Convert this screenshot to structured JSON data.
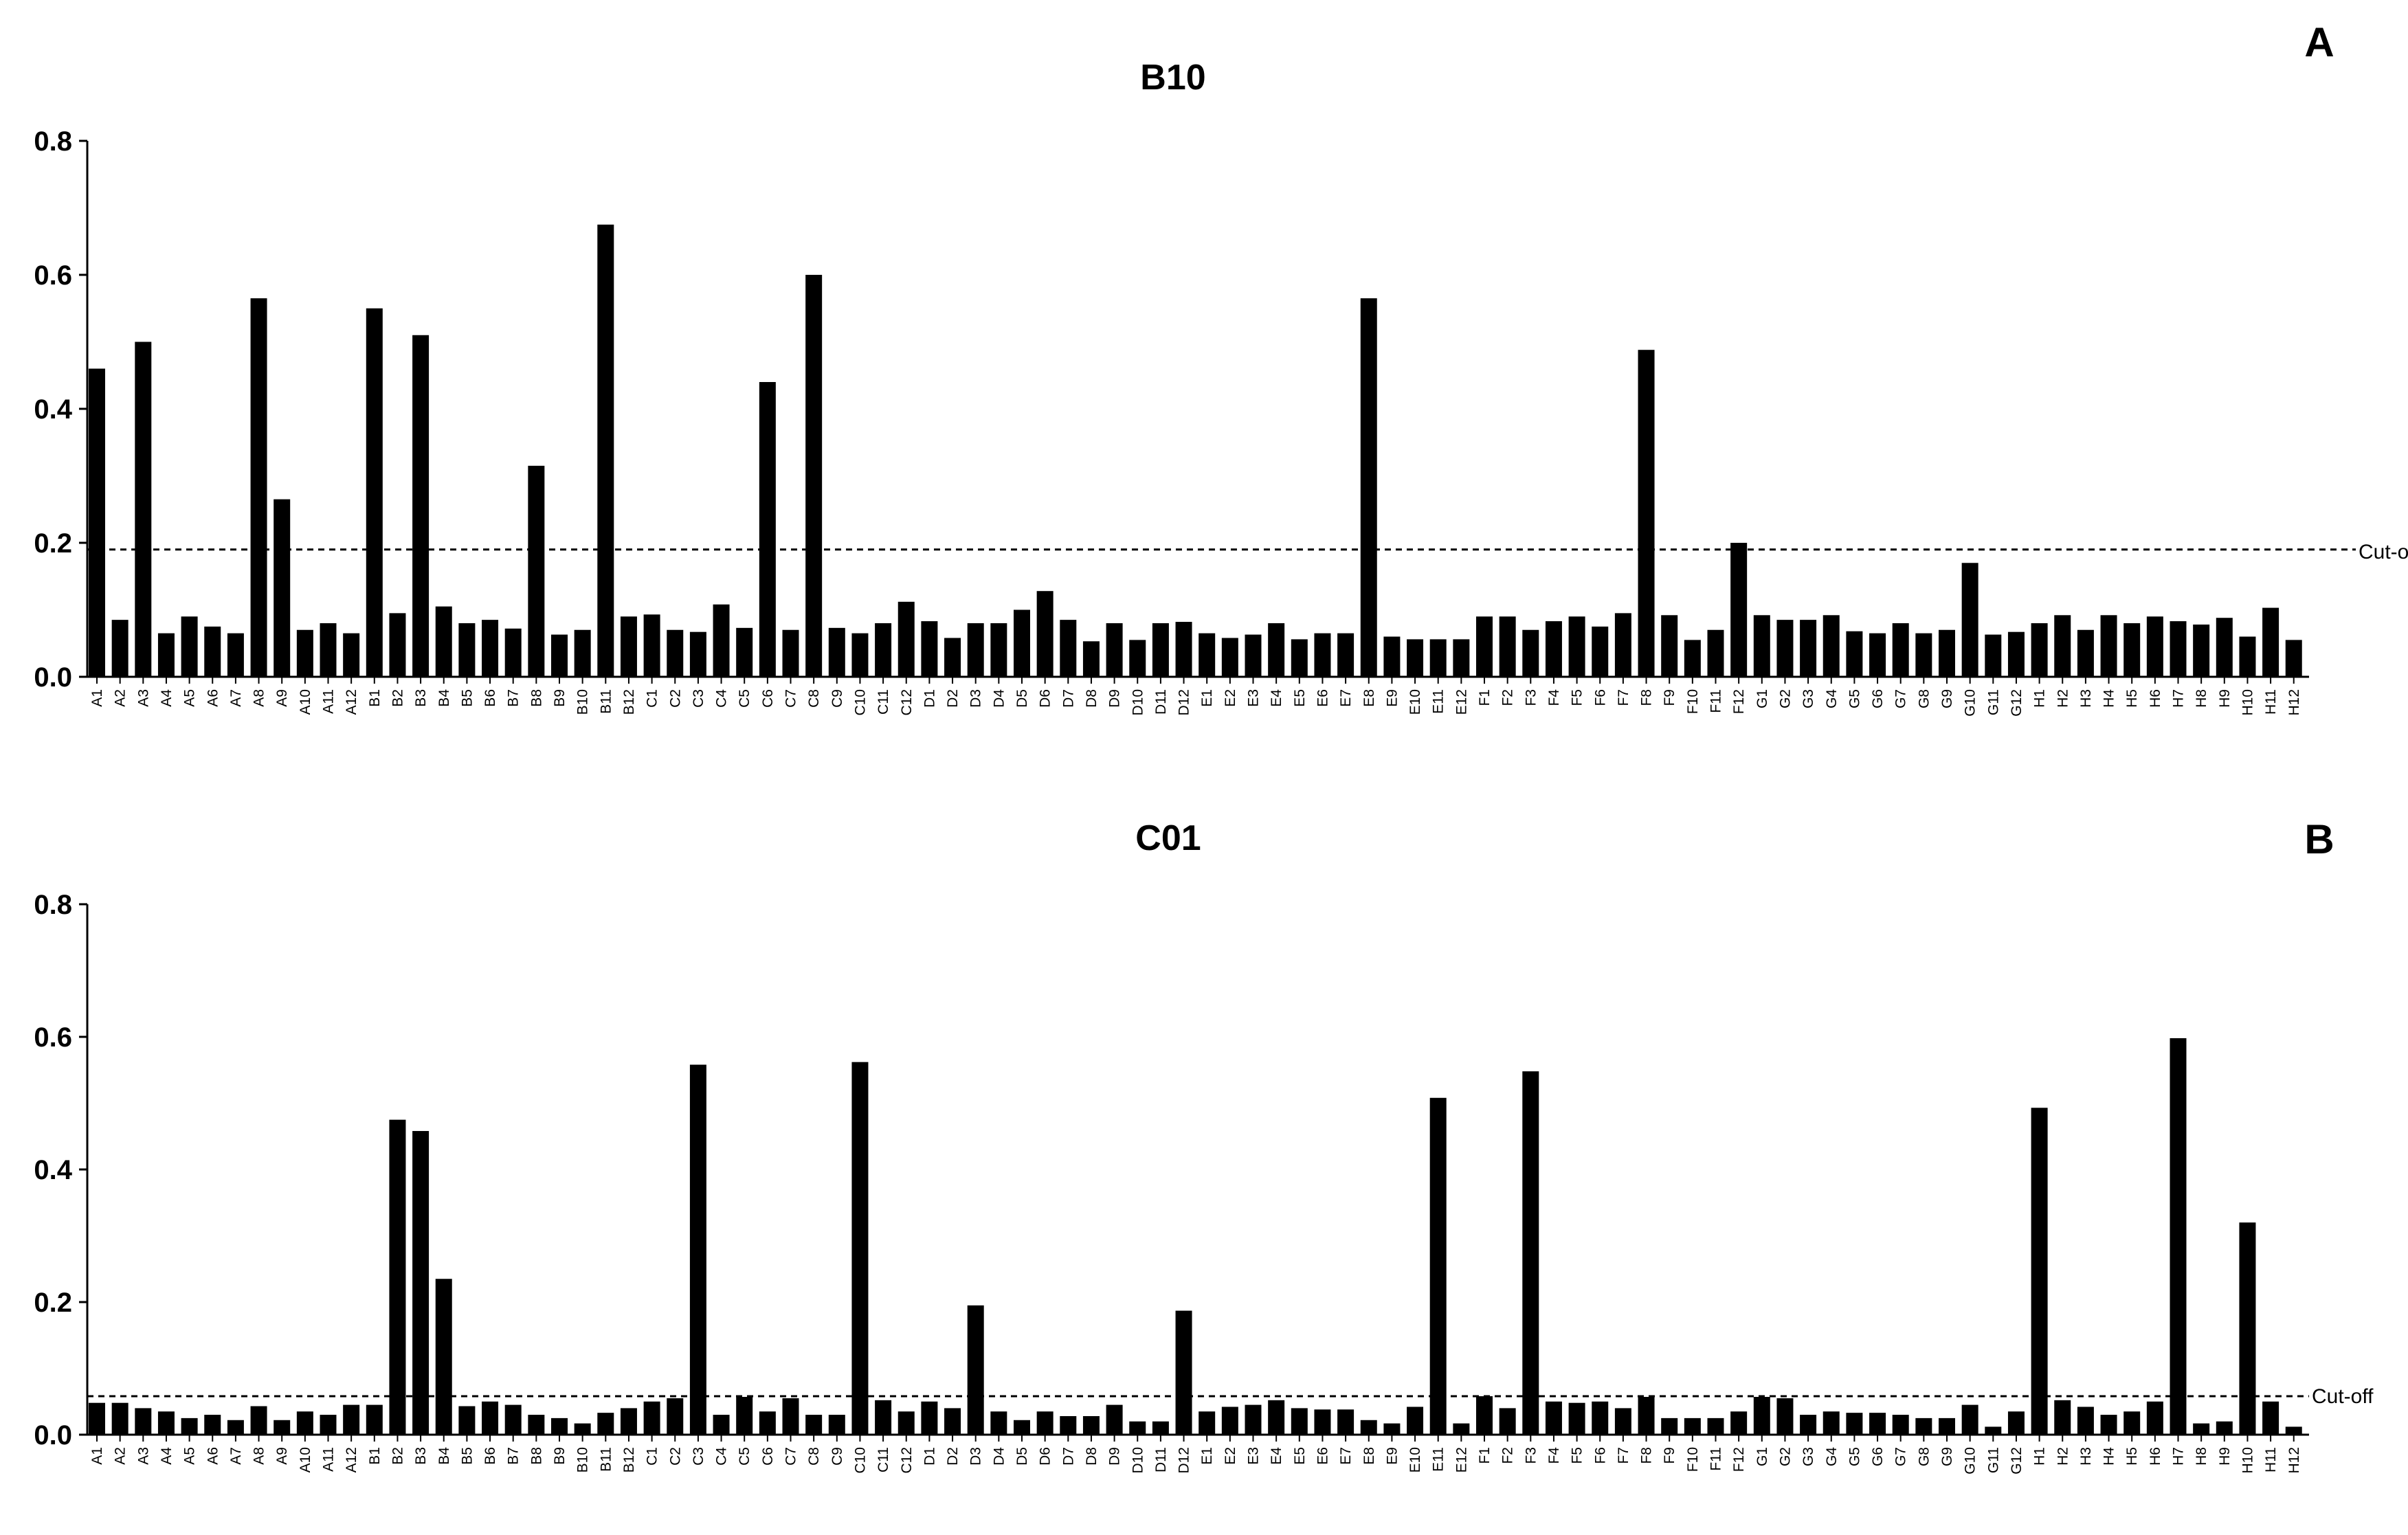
{
  "chart_data": [
    {
      "type": "bar",
      "panel_label": "A",
      "title": "B10",
      "xlabel": "",
      "ylabel": "",
      "ylim": [
        0,
        0.8
      ],
      "yticks": [
        "0.0",
        "0.2",
        "0.4",
        "0.6",
        "0.8"
      ],
      "grid": false,
      "cutoff": {
        "label": "Cut-off",
        "value": 0.19
      },
      "categories": [
        "A1",
        "A2",
        "A3",
        "A4",
        "A5",
        "A6",
        "A7",
        "A8",
        "A9",
        "A10",
        "A11",
        "A12",
        "B1",
        "B2",
        "B3",
        "B4",
        "B5",
        "B6",
        "B7",
        "B8",
        "B9",
        "B10",
        "B11",
        "B12",
        "C1",
        "C2",
        "C3",
        "C4",
        "C5",
        "C6",
        "C7",
        "C8",
        "C9",
        "C10",
        "C11",
        "C12",
        "D1",
        "D2",
        "D3",
        "D4",
        "D5",
        "D6",
        "D7",
        "D8",
        "D9",
        "D10",
        "D11",
        "D12",
        "E1",
        "E2",
        "E3",
        "E4",
        "E5",
        "E6",
        "E7",
        "E8",
        "E9",
        "E10",
        "E11",
        "E12",
        "F1",
        "F2",
        "F3",
        "F4",
        "F5",
        "F6",
        "F7",
        "F8",
        "F9",
        "F10",
        "F11",
        "F12",
        "G1",
        "G2",
        "G3",
        "G4",
        "G5",
        "G6",
        "G7",
        "G8",
        "G9",
        "G10",
        "G11",
        "G12",
        "H1",
        "H2",
        "H3",
        "H4",
        "H5",
        "H6",
        "H7",
        "H8",
        "H9",
        "H10",
        "H11",
        "H12"
      ],
      "values": [
        0.46,
        0.085,
        0.5,
        0.065,
        0.09,
        0.075,
        0.065,
        0.565,
        0.265,
        0.07,
        0.08,
        0.065,
        0.55,
        0.095,
        0.51,
        0.105,
        0.08,
        0.085,
        0.072,
        0.315,
        0.063,
        0.07,
        0.675,
        0.09,
        0.093,
        0.07,
        0.067,
        0.108,
        0.073,
        0.44,
        0.07,
        0.6,
        0.073,
        0.065,
        0.08,
        0.112,
        0.083,
        0.058,
        0.08,
        0.08,
        0.1,
        0.128,
        0.085,
        0.053,
        0.08,
        0.055,
        0.08,
        0.082,
        0.065,
        0.058,
        0.063,
        0.08,
        0.056,
        0.065,
        0.065,
        0.565,
        0.06,
        0.056,
        0.056,
        0.056,
        0.09,
        0.09,
        0.07,
        0.083,
        0.09,
        0.075,
        0.095,
        0.488,
        0.092,
        0.055,
        0.07,
        0.2,
        0.092,
        0.085,
        0.085,
        0.092,
        0.068,
        0.065,
        0.08,
        0.065,
        0.07,
        0.17,
        0.063,
        0.067,
        0.08,
        0.092,
        0.07,
        0.092,
        0.08,
        0.09,
        0.083,
        0.078,
        0.088,
        0.06,
        0.103,
        0.055
      ]
    },
    {
      "type": "bar",
      "panel_label": "B",
      "title": "C01",
      "xlabel": "",
      "ylabel": "",
      "ylim": [
        0,
        0.8
      ],
      "yticks": [
        "0.0",
        "0.2",
        "0.4",
        "0.6",
        "0.8"
      ],
      "grid": false,
      "cutoff": {
        "label": "Cut-off",
        "value": 0.058
      },
      "categories": [
        "A1",
        "A2",
        "A3",
        "A4",
        "A5",
        "A6",
        "A7",
        "A8",
        "A9",
        "A10",
        "A11",
        "A12",
        "B1",
        "B2",
        "B3",
        "B4",
        "B5",
        "B6",
        "B7",
        "B8",
        "B9",
        "B10",
        "B11",
        "B12",
        "C1",
        "C2",
        "C3",
        "C4",
        "C5",
        "C6",
        "C7",
        "C8",
        "C9",
        "C10",
        "C11",
        "C12",
        "D1",
        "D2",
        "D3",
        "D4",
        "D5",
        "D6",
        "D7",
        "D8",
        "D9",
        "D10",
        "D11",
        "D12",
        "E1",
        "E2",
        "E3",
        "E4",
        "E5",
        "E6",
        "E7",
        "E8",
        "E9",
        "E10",
        "E11",
        "E12",
        "F1",
        "F2",
        "F3",
        "F4",
        "F5",
        "F6",
        "F7",
        "F8",
        "F9",
        "F10",
        "F11",
        "F12",
        "G1",
        "G2",
        "G3",
        "G4",
        "G5",
        "G6",
        "G7",
        "G8",
        "G9",
        "G10",
        "G11",
        "G12",
        "H1",
        "H2",
        "H3",
        "H4",
        "H5",
        "H6",
        "H7",
        "H8",
        "H9",
        "H10",
        "H11",
        "H12"
      ],
      "values": [
        0.048,
        0.048,
        0.04,
        0.035,
        0.025,
        0.03,
        0.022,
        0.043,
        0.022,
        0.035,
        0.03,
        0.045,
        0.045,
        0.475,
        0.458,
        0.235,
        0.043,
        0.05,
        0.045,
        0.03,
        0.025,
        0.017,
        0.033,
        0.04,
        0.05,
        0.055,
        0.558,
        0.03,
        0.057,
        0.035,
        0.055,
        0.03,
        0.03,
        0.562,
        0.052,
        0.035,
        0.05,
        0.04,
        0.195,
        0.035,
        0.022,
        0.035,
        0.028,
        0.028,
        0.045,
        0.02,
        0.02,
        0.187,
        0.035,
        0.042,
        0.045,
        0.052,
        0.04,
        0.038,
        0.038,
        0.022,
        0.017,
        0.042,
        0.508,
        0.017,
        0.058,
        0.04,
        0.548,
        0.05,
        0.048,
        0.05,
        0.04,
        0.057,
        0.025,
        0.025,
        0.025,
        0.035,
        0.057,
        0.055,
        0.03,
        0.035,
        0.033,
        0.033,
        0.03,
        0.025,
        0.025,
        0.045,
        0.012,
        0.035,
        0.493,
        0.052,
        0.042,
        0.03,
        0.035,
        0.05,
        0.598,
        0.017,
        0.02,
        0.32,
        0.05,
        0.012
      ]
    }
  ]
}
